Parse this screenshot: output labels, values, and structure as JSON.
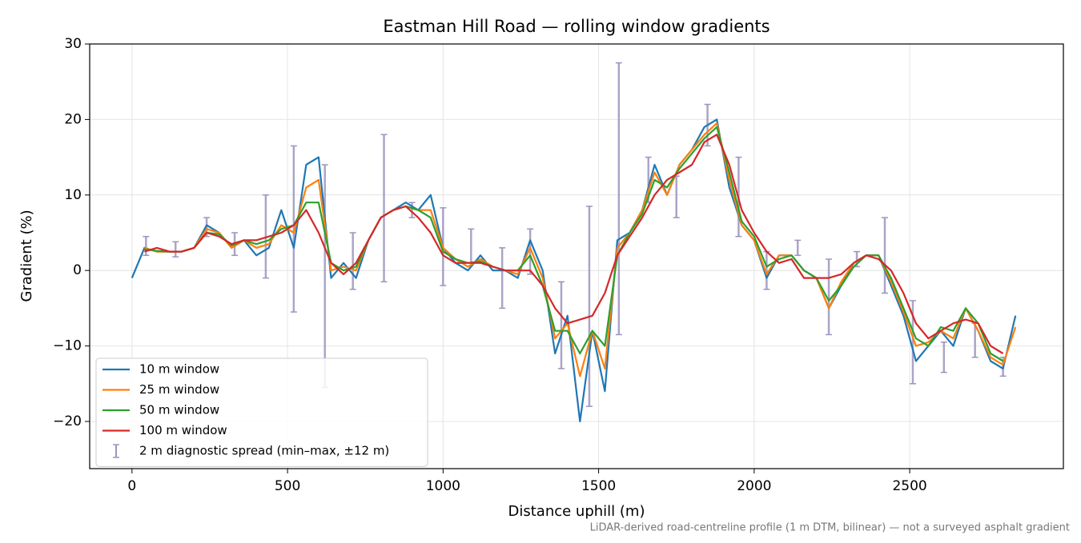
{
  "chart_data": {
    "type": "line",
    "title": "Eastman Hill Road — rolling window gradients",
    "xlabel": "Distance uphill (m)",
    "ylabel": "Gradient (%)",
    "annotation": "LiDAR-derived road-centreline profile (1 m DTM, bilinear) — not a surveyed asphalt gradient",
    "xlim": [
      -136,
      2994
    ],
    "ylim": [
      -26.25,
      30
    ],
    "xticks": [
      0,
      500,
      1000,
      1500,
      2000,
      2500
    ],
    "yticks": [
      {
        "value": -20,
        "label": "−20"
      },
      {
        "value": -10,
        "label": "−10"
      },
      0,
      10,
      20,
      30
    ],
    "grid": true,
    "legend": "lower left",
    "x": [
      0,
      40,
      80,
      120,
      160,
      200,
      240,
      280,
      320,
      360,
      400,
      440,
      480,
      520,
      560,
      600,
      640,
      680,
      720,
      760,
      800,
      840,
      880,
      920,
      960,
      1000,
      1040,
      1080,
      1120,
      1160,
      1200,
      1240,
      1280,
      1320,
      1360,
      1400,
      1440,
      1480,
      1520,
      1560,
      1600,
      1640,
      1680,
      1720,
      1760,
      1800,
      1840,
      1880,
      1920,
      1960,
      2000,
      2040,
      2080,
      2120,
      2160,
      2200,
      2240,
      2280,
      2320,
      2360,
      2400,
      2440,
      2480,
      2520,
      2560,
      2600,
      2640,
      2680,
      2720,
      2760,
      2800,
      2840
    ],
    "series": [
      {
        "name": "10 m window",
        "color": "#1f77b4",
        "values": [
          -1,
          3,
          2.5,
          2.5,
          2.5,
          3,
          6,
          5,
          3,
          4,
          2,
          3,
          8,
          3,
          14,
          15,
          -1,
          1,
          -1,
          4,
          7,
          8,
          9,
          8,
          10,
          3,
          1,
          0,
          2,
          0,
          0,
          -1,
          4,
          0,
          -11,
          -6,
          -20,
          -8,
          -16,
          4,
          5,
          8,
          14,
          10,
          14,
          16,
          19,
          20,
          11,
          6,
          4,
          -1,
          2,
          2,
          0,
          -1,
          -5,
          -2,
          1,
          2,
          2,
          -2,
          -6,
          -12,
          -10,
          -8,
          -10,
          -5,
          -8,
          -12,
          -13,
          -6
        ]
      },
      {
        "name": "25 m window",
        "color": "#ff7f0e",
        "values": [
          null,
          3,
          2.5,
          2.5,
          2.5,
          3,
          5.5,
          5,
          3,
          4,
          3,
          3.5,
          6,
          5,
          11,
          12,
          0,
          0.5,
          0,
          4,
          7,
          8,
          8.5,
          8,
          8,
          3,
          1.5,
          0.5,
          1.5,
          0.5,
          0,
          -0.5,
          3,
          -1,
          -9,
          -7,
          -14,
          -8,
          -13,
          3,
          5,
          8,
          13,
          10,
          14,
          16,
          18,
          19.5,
          12,
          6,
          4,
          -0.5,
          2,
          2,
          0,
          -1,
          -5,
          -1.5,
          1,
          2,
          2,
          -1.5,
          -5.5,
          -10,
          -9.5,
          -8,
          -9,
          -5,
          -8,
          -11.5,
          -12.5,
          -7.5
        ]
      },
      {
        "name": "50 m window",
        "color": "#2ca02c",
        "values": [
          null,
          2.8,
          2.6,
          2.5,
          2.5,
          3,
          5,
          4.8,
          3.3,
          4,
          3.5,
          4,
          5.5,
          6,
          9,
          9,
          1,
          0,
          0.5,
          4,
          7,
          8,
          8.5,
          8,
          7,
          2.5,
          1.5,
          1,
          1.2,
          0.5,
          0,
          0,
          2,
          -2,
          -8,
          -8,
          -11,
          -8,
          -10,
          2,
          5,
          7.5,
          12,
          11,
          13.5,
          15.5,
          17.5,
          19,
          13,
          6.5,
          4.5,
          0.5,
          1.5,
          2,
          0,
          -1,
          -4,
          -2,
          0.5,
          2,
          2,
          -1,
          -5,
          -9,
          -10,
          -7.5,
          -8,
          -5,
          -7,
          -11,
          -12,
          null
        ]
      },
      {
        "name": "100 m window",
        "color": "#d62728",
        "values": [
          null,
          2.5,
          3,
          2.5,
          2.5,
          3,
          5,
          4.5,
          3.5,
          4,
          4,
          4.5,
          5,
          6,
          8,
          5,
          1,
          -0.5,
          1,
          4,
          7,
          8,
          8.5,
          7,
          5,
          2,
          1,
          1,
          1,
          0.5,
          0,
          0,
          0,
          -2,
          -5,
          -7,
          -6.5,
          -6,
          -3,
          2,
          4.5,
          7,
          10,
          12,
          13,
          14,
          17,
          18,
          14,
          8,
          5,
          2.5,
          1,
          1.5,
          -1,
          -1,
          -1,
          -0.5,
          1,
          2,
          1.5,
          0,
          -3,
          -7,
          -9,
          -8,
          -7,
          -6.5,
          -7,
          -10,
          -11,
          null
        ]
      }
    ],
    "errorbars": {
      "name": "2 m diagnostic spread (min–max, ±12 m)",
      "color": "#9d95bf",
      "x": [
        45,
        140,
        240,
        330,
        430,
        520,
        620,
        710,
        810,
        900,
        1000,
        1090,
        1190,
        1280,
        1380,
        1470,
        1565,
        1660,
        1750,
        1850,
        1950,
        2040,
        2140,
        2240,
        2330,
        2420,
        2510,
        2610,
        2710,
        2800
      ],
      "low": [
        2,
        1.8,
        4.5,
        2,
        -1,
        -5.5,
        -15.5,
        -2.5,
        -1.5,
        7,
        -2,
        1,
        -5,
        -0.5,
        -13,
        -18,
        -8.5,
        9,
        7,
        16.5,
        4.5,
        -2.5,
        2,
        -8.5,
        0.5,
        -3,
        -15,
        -13.5,
        -11.5,
        -14
      ],
      "high": [
        4.5,
        3.8,
        7,
        5,
        10,
        16.5,
        14,
        5,
        18,
        9,
        8.3,
        5.5,
        3,
        5.5,
        -1.5,
        8.5,
        27.5,
        15,
        12.5,
        22,
        15,
        2.5,
        4,
        1.5,
        2.5,
        7,
        -4,
        -9.5,
        -7,
        -11.5
      ]
    }
  }
}
